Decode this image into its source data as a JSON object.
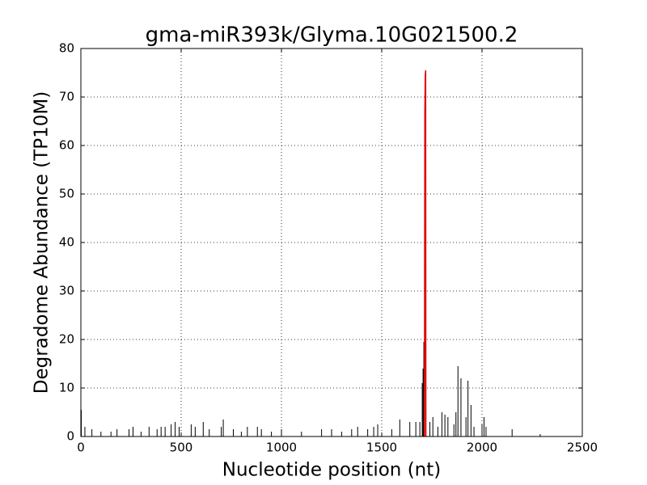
{
  "chart_data": {
    "type": "line",
    "title": "gma-miR393k/Glyma.10G021500.2",
    "x_label": "Nucleotide position (nt)",
    "y_label": "Degradome Abundance (TP10M)",
    "xlim": [
      0,
      2500
    ],
    "xticks": [
      0,
      500,
      1000,
      1500,
      2000,
      2500
    ],
    "ylim": [
      0,
      80
    ],
    "yticks": [
      0,
      10,
      20,
      30,
      40,
      50,
      60,
      70,
      80
    ],
    "grid": true,
    "series": [
      {
        "style": "stem",
        "color": "#000000",
        "x": [
          2,
          20,
          55,
          100,
          150,
          180,
          240,
          260,
          300,
          340,
          380,
          400,
          420,
          450,
          470,
          490,
          550,
          570,
          610,
          640,
          700,
          710,
          760,
          800,
          830,
          880,
          900,
          950,
          1000,
          1100,
          1200,
          1250,
          1300,
          1350,
          1380,
          1430,
          1460,
          1480,
          1550,
          1590,
          1640,
          1670,
          1690,
          1702,
          1706,
          1710,
          1740,
          1755,
          1780,
          1800,
          1815,
          1830,
          1860,
          1870,
          1880,
          1895,
          1920,
          1930,
          1945,
          1960,
          2000,
          2010,
          2020,
          2150,
          2290
        ],
        "values": [
          5.5,
          2,
          1.5,
          1,
          1,
          1.5,
          1.5,
          2,
          1,
          2,
          1.5,
          2,
          2,
          2.5,
          3,
          2,
          2.5,
          2,
          3,
          1.5,
          2,
          3.5,
          1.5,
          1,
          2,
          2,
          1.5,
          1,
          1.5,
          1,
          1.5,
          1.5,
          1,
          1.5,
          2,
          1.5,
          2,
          2.5,
          1.5,
          3.5,
          3,
          3,
          3,
          11,
          14,
          19.5,
          3,
          4,
          2,
          5,
          4.5,
          4,
          2.5,
          5,
          14.5,
          12,
          4,
          11.5,
          6.5,
          2,
          2.5,
          4,
          2,
          1.5,
          0.5
        ]
      },
      {
        "style": "line",
        "color": "#e00000",
        "x": [
          1713,
          1715,
          1717,
          1719,
          1720
        ],
        "values": [
          0,
          67,
          74.5,
          75.5,
          0
        ]
      }
    ]
  }
}
